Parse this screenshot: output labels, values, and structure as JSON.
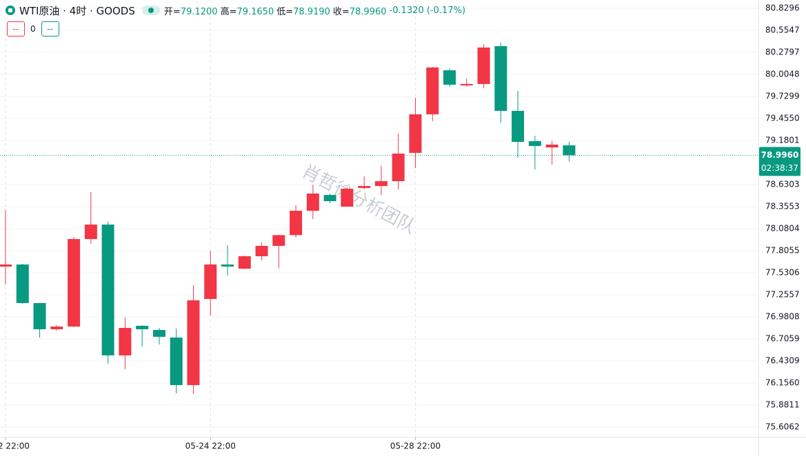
{
  "chart_data": {
    "type": "candlestick",
    "header": {
      "symbol": "WTI原油 · 4时 · GOODS",
      "items": [
        {
          "label": "开=",
          "value": "79.1200"
        },
        {
          "label": "高=",
          "value": "79.1650"
        },
        {
          "label": "低=",
          "value": "78.9190"
        },
        {
          "label": "收=",
          "value": "78.9960"
        }
      ],
      "change": "-0.1320 (-0.17%)",
      "buttons": [
        "--",
        "--"
      ],
      "count": "0"
    },
    "watermark": "肖哲徐分析团队",
    "categories": [
      "2 22:00",
      null,
      null,
      null,
      null,
      null,
      null,
      null,
      null,
      null,
      null,
      null,
      "05-24 22:00",
      null,
      null,
      null,
      null,
      null,
      null,
      null,
      null,
      null,
      null,
      null,
      "05-28 22:00",
      null,
      null,
      null,
      null,
      null,
      null,
      null,
      null,
      null
    ],
    "open": [
      77.608,
      77.634,
      77.153,
      76.826,
      76.86,
      77.951,
      78.132,
      76.5,
      76.869,
      76.817,
      76.723,
      76.13,
      77.204,
      77.634,
      77.582,
      77.737,
      77.866,
      78.0,
      78.304,
      78.501,
      78.355,
      78.588,
      78.613,
      78.673,
      79.026,
      79.507,
      80.056,
      79.867,
      79.885,
      80.357,
      79.55,
      79.172,
      79.094,
      79.12
    ],
    "high": [
      78.312,
      77.642,
      77.153,
      76.878,
      77.977,
      78.536,
      78.166,
      76.972,
      76.878,
      76.843,
      76.835,
      77.376,
      77.806,
      77.874,
      77.745,
      77.909,
      78.003,
      78.372,
      78.63,
      78.519,
      78.596,
      78.733,
      78.862,
      79.266,
      79.713,
      80.1,
      80.082,
      79.953,
      80.383,
      80.4,
      79.799,
      79.24,
      79.172,
      79.165
    ],
    "low": [
      77.385,
      77.144,
      76.723,
      76.809,
      76.852,
      77.891,
      76.397,
      76.328,
      76.611,
      76.637,
      76.027,
      76.019,
      76.998,
      77.496,
      77.574,
      77.685,
      77.591,
      77.969,
      78.201,
      78.398,
      78.355,
      78.57,
      78.501,
      78.57,
      78.837,
      79.421,
      79.85,
      79.85,
      79.833,
      79.404,
      78.965,
      78.819,
      78.88,
      78.919
    ],
    "close": [
      77.634,
      77.153,
      76.826,
      76.86,
      77.951,
      78.132,
      76.5,
      76.843,
      76.826,
      76.732,
      76.13,
      77.187,
      77.634,
      77.608,
      77.737,
      77.866,
      78.0,
      78.304,
      78.519,
      78.424,
      78.579,
      78.613,
      78.673,
      79.017,
      79.507,
      80.091,
      79.876,
      79.885,
      80.34,
      79.55,
      79.163,
      79.112,
      79.129,
      78.996
    ],
    "up_color": "#f23645",
    "down_color": "#089981",
    "ylim": [
      75.4773,
      80.9327
    ],
    "yticks": [
      80.8296,
      80.5547,
      80.2797,
      80.0048,
      79.7299,
      {
        "value": 79.455,
        "label": "79.4550"
      },
      79.1801,
      78.6303,
      78.3553,
      78.0804,
      77.8055,
      77.5306,
      77.2557,
      76.9808,
      76.7059,
      76.4309,
      {
        "value": 76.156,
        "label": "76.1560"
      },
      75.8811,
      75.6062
    ],
    "grid": true,
    "last_price": {
      "value": 78.996,
      "label": "78.9960"
    },
    "countdown": "02:38:37"
  }
}
